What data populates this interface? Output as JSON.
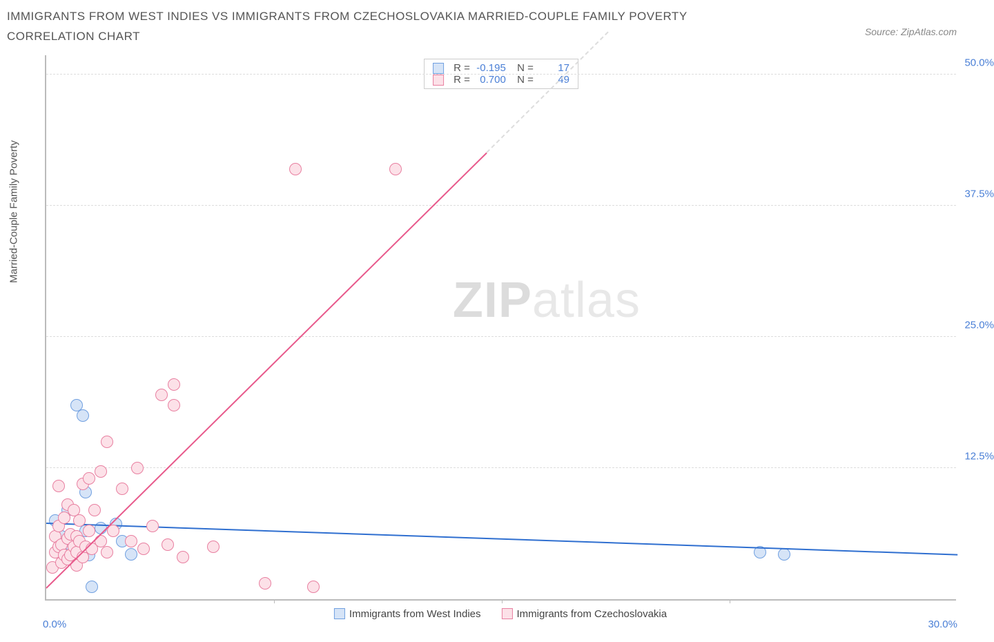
{
  "title": "IMMIGRANTS FROM WEST INDIES VS IMMIGRANTS FROM CZECHOSLOVAKIA MARRIED-COUPLE FAMILY POVERTY CORRELATION CHART",
  "source": "Source: ZipAtlas.com",
  "y_axis_label": "Married-Couple Family Poverty",
  "watermark": {
    "bold": "ZIP",
    "rest": "atlas"
  },
  "chart": {
    "type": "scatter",
    "xlim": [
      0,
      30
    ],
    "ylim": [
      0,
      52
    ],
    "x_ticks": [
      0,
      7.5,
      15,
      22.5,
      30
    ],
    "x_tick_labels": [
      "0.0%",
      "",
      "",
      "",
      "30.0%"
    ],
    "y_ticks": [
      12.5,
      25,
      37.5,
      50
    ],
    "y_tick_labels": [
      "12.5%",
      "25.0%",
      "37.5%",
      "50.0%"
    ],
    "grid_color": "#dddddd",
    "background_color": "#ffffff",
    "axis_color": "#bbbbbb",
    "tick_label_color": "#4a7fd6",
    "marker_radius": 9,
    "marker_stroke_width": 1.5,
    "series": [
      {
        "id": "west_indies",
        "label": "Immigrants from West Indies",
        "fill": "#d6e4f7",
        "stroke": "#6f9fe0",
        "line_color": "#2f6fd0",
        "R": "-0.195",
        "N": "17",
        "trend": {
          "x1": 0,
          "y1": 7.2,
          "x2": 30,
          "y2": 4.2
        },
        "points": [
          [
            0.3,
            7.5
          ],
          [
            0.5,
            6.0
          ],
          [
            0.6,
            4.5
          ],
          [
            0.7,
            8.5
          ],
          [
            0.8,
            5.2
          ],
          [
            1.0,
            18.5
          ],
          [
            1.2,
            17.5
          ],
          [
            1.3,
            10.2
          ],
          [
            1.3,
            6.5
          ],
          [
            1.4,
            4.2
          ],
          [
            1.5,
            1.2
          ],
          [
            1.8,
            6.8
          ],
          [
            2.3,
            7.2
          ],
          [
            2.5,
            5.5
          ],
          [
            2.8,
            4.3
          ],
          [
            23.5,
            4.5
          ],
          [
            24.3,
            4.3
          ]
        ]
      },
      {
        "id": "czechoslovakia",
        "label": "Immigrants from Czechoslovakia",
        "fill": "#fce1e8",
        "stroke": "#e87fa0",
        "line_color": "#e85a8c",
        "R": "0.700",
        "N": "49",
        "trend_solid": {
          "x1": 0,
          "y1": 1.0,
          "x2": 14.5,
          "y2": 42.5
        },
        "trend_dash": {
          "x1": 14.5,
          "y1": 42.5,
          "x2": 18.5,
          "y2": 54
        },
        "points": [
          [
            0.2,
            3.0
          ],
          [
            0.3,
            4.5
          ],
          [
            0.3,
            6.0
          ],
          [
            0.4,
            5.0
          ],
          [
            0.4,
            7.0
          ],
          [
            0.4,
            10.8
          ],
          [
            0.5,
            3.5
          ],
          [
            0.5,
            5.2
          ],
          [
            0.6,
            4.2
          ],
          [
            0.6,
            7.8
          ],
          [
            0.7,
            3.8
          ],
          [
            0.7,
            5.8
          ],
          [
            0.7,
            9.0
          ],
          [
            0.8,
            4.2
          ],
          [
            0.8,
            6.2
          ],
          [
            0.9,
            5.0
          ],
          [
            0.9,
            8.5
          ],
          [
            1.0,
            3.2
          ],
          [
            1.0,
            4.5
          ],
          [
            1.0,
            6.0
          ],
          [
            1.1,
            5.5
          ],
          [
            1.1,
            7.5
          ],
          [
            1.2,
            4.0
          ],
          [
            1.2,
            11.0
          ],
          [
            1.3,
            5.0
          ],
          [
            1.4,
            6.5
          ],
          [
            1.4,
            11.5
          ],
          [
            1.5,
            4.8
          ],
          [
            1.6,
            8.5
          ],
          [
            1.8,
            5.5
          ],
          [
            1.8,
            12.2
          ],
          [
            2.0,
            4.5
          ],
          [
            2.0,
            15.0
          ],
          [
            2.2,
            6.5
          ],
          [
            2.5,
            10.5
          ],
          [
            2.8,
            5.5
          ],
          [
            3.0,
            12.5
          ],
          [
            3.2,
            4.8
          ],
          [
            3.5,
            7.0
          ],
          [
            3.8,
            19.5
          ],
          [
            4.0,
            5.2
          ],
          [
            4.2,
            18.5
          ],
          [
            4.2,
            20.5
          ],
          [
            4.5,
            4.0
          ],
          [
            5.5,
            5.0
          ],
          [
            7.2,
            1.5
          ],
          [
            8.2,
            41.0
          ],
          [
            8.8,
            1.2
          ],
          [
            11.5,
            41.0
          ]
        ]
      }
    ]
  },
  "bottom_legend": [
    {
      "label": "Immigrants from West Indies",
      "fill": "#d6e4f7",
      "stroke": "#6f9fe0"
    },
    {
      "label": "Immigrants from Czechoslovakia",
      "fill": "#fce1e8",
      "stroke": "#e87fa0"
    }
  ]
}
